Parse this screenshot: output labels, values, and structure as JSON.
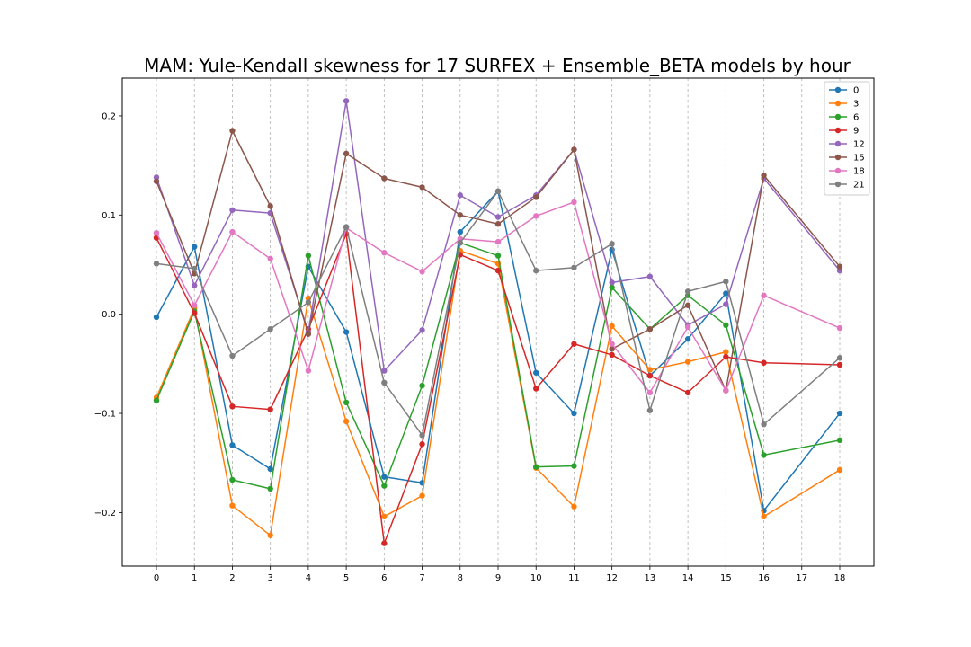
{
  "chart_data": {
    "type": "line",
    "title": "MAM: Yule-Kendall skewness for 17 SURFEX + Ensemble_BETA models by hour",
    "xlabel": "",
    "ylabel": "",
    "x_ticks": [
      0,
      1,
      2,
      3,
      4,
      5,
      6,
      7,
      8,
      9,
      10,
      11,
      12,
      13,
      14,
      15,
      16,
      17,
      18
    ],
    "y_ticks": [
      -0.2,
      -0.1,
      0.0,
      0.1,
      0.2
    ],
    "y_tick_labels": [
      "−0.2",
      "−0.1",
      "0.0",
      "0.1",
      "0.2"
    ],
    "xlim": [
      -0.9,
      18.9
    ],
    "ylim": [
      -0.254,
      0.238
    ],
    "grid": "vertical dashed",
    "legend_position": "top-right",
    "x": [
      0,
      1,
      2,
      3,
      4,
      5,
      6,
      7,
      8,
      9,
      10,
      11,
      12,
      13,
      14,
      15,
      16,
      18
    ],
    "series": [
      {
        "name": "0",
        "color": "#1f77b4",
        "values": [
          -0.003,
          0.068,
          -0.132,
          -0.156,
          0.048,
          -0.018,
          -0.164,
          -0.17,
          0.083,
          0.124,
          -0.059,
          -0.1,
          0.065,
          -0.062,
          -0.025,
          0.021,
          -0.198,
          -0.1
        ]
      },
      {
        "name": "3",
        "color": "#ff7f0e",
        "values": [
          -0.084,
          0.006,
          -0.193,
          -0.223,
          0.016,
          -0.108,
          -0.204,
          -0.183,
          0.064,
          0.051,
          -0.155,
          -0.194,
          -0.012,
          -0.056,
          -0.048,
          -0.038,
          -0.204,
          -0.157
        ]
      },
      {
        "name": "6",
        "color": "#2ca02c",
        "values": [
          -0.087,
          0.003,
          -0.167,
          -0.176,
          0.059,
          -0.089,
          -0.173,
          -0.072,
          0.072,
          0.059,
          -0.154,
          -0.153,
          0.027,
          -0.015,
          0.019,
          -0.011,
          -0.142,
          -0.127
        ]
      },
      {
        "name": "9",
        "color": "#d62728",
        "values": [
          0.077,
          0.001,
          -0.093,
          -0.096,
          -0.015,
          0.081,
          -0.231,
          -0.131,
          0.06,
          0.044,
          -0.075,
          -0.03,
          -0.041,
          -0.062,
          -0.079,
          -0.043,
          -0.049,
          -0.051
        ]
      },
      {
        "name": "12",
        "color": "#9467bd",
        "values": [
          0.138,
          0.029,
          0.105,
          0.102,
          -0.018,
          0.215,
          -0.057,
          -0.016,
          0.12,
          0.098,
          0.12,
          0.166,
          0.032,
          0.038,
          -0.011,
          0.01,
          0.137,
          0.044
        ]
      },
      {
        "name": "15",
        "color": "#8c564b",
        "values": [
          0.134,
          0.041,
          0.185,
          0.109,
          -0.02,
          0.162,
          0.137,
          0.128,
          0.1,
          0.091,
          0.118,
          0.166,
          -0.035,
          -0.015,
          0.009,
          -0.077,
          0.14,
          0.048
        ]
      },
      {
        "name": "18",
        "color": "#e377c2",
        "values": [
          0.082,
          0.009,
          0.083,
          0.056,
          -0.057,
          0.087,
          0.062,
          0.043,
          0.076,
          0.073,
          0.099,
          0.113,
          -0.03,
          -0.079,
          -0.013,
          -0.077,
          0.019,
          -0.014
        ]
      },
      {
        "name": "21",
        "color": "#7f7f7f",
        "values": [
          0.051,
          0.046,
          -0.042,
          -0.015,
          0.012,
          0.088,
          -0.069,
          -0.122,
          0.072,
          0.124,
          0.044,
          0.047,
          0.071,
          -0.097,
          0.023,
          0.033,
          -0.111,
          -0.044
        ]
      }
    ]
  }
}
